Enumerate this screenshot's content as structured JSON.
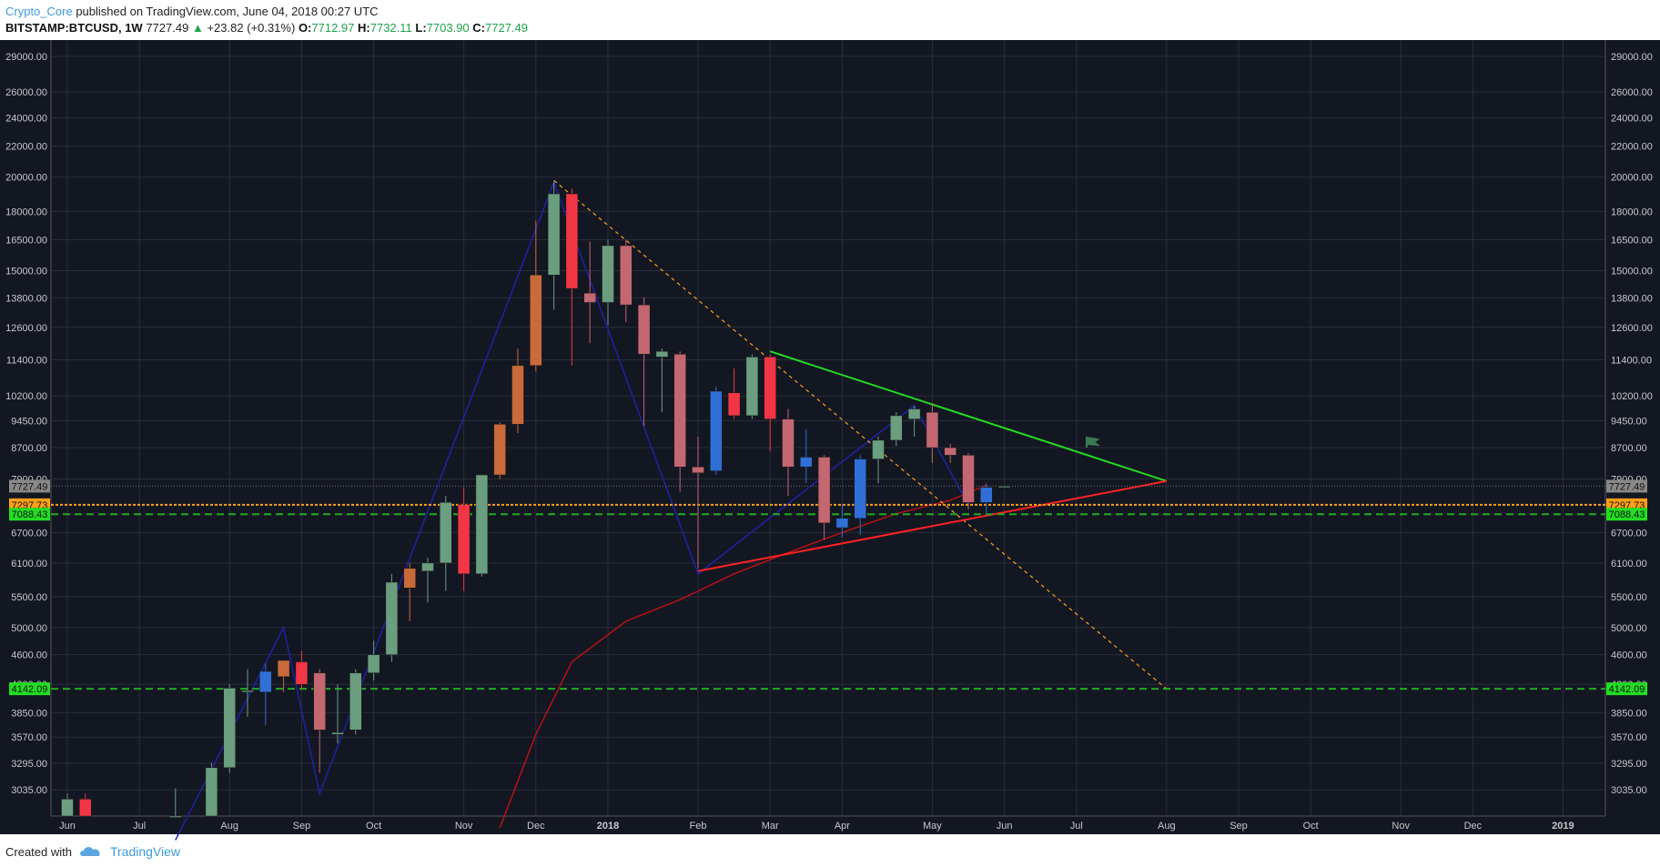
{
  "header": {
    "author": "Crypto_Core",
    "published": "published on TradingView.com, June 04, 2018 00:27 UTC",
    "symbol": "BITSTAMP:BTCUSD, 1W",
    "last": "7727.49",
    "change": "+23.82 (+0.31%)",
    "o_label": "O:",
    "o": "7712.97",
    "h_label": "H:",
    "h": "7732.11",
    "l_label": "L:",
    "l": "7703.90",
    "c_label": "C:",
    "c": "7727.49"
  },
  "footer": {
    "created": "Created with",
    "brand": "TradingView"
  },
  "colors": {
    "background": "#131722",
    "grid": "#2a2e39",
    "up": "#6a9e7f",
    "down": "#c36770",
    "down_strong": "#f23645",
    "blue_candle": "#2f6fd6",
    "orange_candle": "#c96a3a",
    "trend_green": "#22dd22",
    "trend_red": "#ff2222",
    "dashed_green": "#22aa22",
    "dashed_orange": "#ff9f1a"
  },
  "chart_data": {
    "type": "candlestick",
    "y_scale": "log",
    "ylim": [
      2800,
      30500
    ],
    "y_ticks": [
      29000,
      26000,
      24000,
      22000,
      20000,
      18000,
      16500,
      15000,
      13800,
      12600,
      11400,
      10200,
      9450,
      8700,
      7900,
      6700,
      6100,
      5500,
      5000,
      4600,
      4200,
      3850,
      3570,
      3295,
      3035
    ],
    "y_tick_labels": [
      "29000.00",
      "26000.00",
      "24000.00",
      "22000.00",
      "20000.00",
      "18000.00",
      "16500.00",
      "15000.00",
      "13800.00",
      "12600.00",
      "11400.00",
      "10200.00",
      "9450.00",
      "8700.00",
      "7900.00",
      "6700.00",
      "6100.00",
      "5500.00",
      "5000.00",
      "4600.00",
      "4200.00",
      "3850.00",
      "3570.00",
      "3295.00",
      "3035.00"
    ],
    "x_labels": [
      {
        "label": "Jun",
        "week": 0
      },
      {
        "label": "Jul",
        "week": 4
      },
      {
        "label": "Aug",
        "week": 9
      },
      {
        "label": "Sep",
        "week": 13
      },
      {
        "label": "Oct",
        "week": 17
      },
      {
        "label": "Nov",
        "week": 22
      },
      {
        "label": "Dec",
        "week": 26
      },
      {
        "label": "2018",
        "week": 30,
        "bold": true
      },
      {
        "label": "Feb",
        "week": 35
      },
      {
        "label": "Mar",
        "week": 39
      },
      {
        "label": "Apr",
        "week": 43
      },
      {
        "label": "May",
        "week": 48
      },
      {
        "label": "Jun",
        "week": 52
      },
      {
        "label": "Jul",
        "week": 56
      },
      {
        "label": "Aug",
        "week": 61
      },
      {
        "label": "Sep",
        "week": 65
      },
      {
        "label": "Oct",
        "week": 69
      },
      {
        "label": "Nov",
        "week": 74
      },
      {
        "label": "Dec",
        "week": 78
      },
      {
        "label": "2019",
        "week": 83,
        "bold": true
      }
    ],
    "candles": [
      {
        "w": 0,
        "o": 2700,
        "h": 3000,
        "l": 2650,
        "c": 2950,
        "col": "up"
      },
      {
        "w": 1,
        "o": 2950,
        "h": 3000,
        "l": 2700,
        "c": 2750,
        "col": "down_strong"
      },
      {
        "w": 6,
        "o": 2600,
        "h": 3050,
        "l": 2600,
        "c": 2800,
        "col": "up"
      },
      {
        "w": 8,
        "o": 2700,
        "h": 3300,
        "l": 2650,
        "c": 3250,
        "col": "up"
      },
      {
        "w": 9,
        "o": 3250,
        "h": 4200,
        "l": 3200,
        "c": 4150,
        "col": "up"
      },
      {
        "w": 10,
        "o": 4100,
        "h": 4400,
        "l": 3800,
        "c": 4120,
        "col": "up"
      },
      {
        "w": 11,
        "o": 4100,
        "h": 4480,
        "l": 3700,
        "c": 4370,
        "col": "blue_candle"
      },
      {
        "w": 12,
        "o": 4300,
        "h": 4500,
        "l": 4100,
        "c": 4520,
        "col": "orange_candle"
      },
      {
        "w": 13,
        "o": 4500,
        "h": 4650,
        "l": 4150,
        "c": 4200,
        "col": "down_strong"
      },
      {
        "w": 14,
        "o": 4350,
        "h": 4400,
        "l": 3200,
        "c": 3650,
        "col": "down"
      },
      {
        "w": 15,
        "o": 3600,
        "h": 4200,
        "l": 3500,
        "c": 3620,
        "col": "up"
      },
      {
        "w": 16,
        "o": 3650,
        "h": 4400,
        "l": 3600,
        "c": 4350,
        "col": "up"
      },
      {
        "w": 17,
        "o": 4350,
        "h": 4800,
        "l": 4250,
        "c": 4600,
        "col": "up"
      },
      {
        "w": 18,
        "o": 4600,
        "h": 5900,
        "l": 4500,
        "c": 5750,
        "col": "up"
      },
      {
        "w": 19,
        "o": 5650,
        "h": 6100,
        "l": 5100,
        "c": 6000,
        "col": "orange_candle"
      },
      {
        "w": 20,
        "o": 5950,
        "h": 6200,
        "l": 5400,
        "c": 6100,
        "col": "up"
      },
      {
        "w": 21,
        "o": 6100,
        "h": 7500,
        "l": 5600,
        "c": 7350,
        "col": "up"
      },
      {
        "w": 22,
        "o": 7300,
        "h": 7700,
        "l": 5600,
        "c": 5900,
        "col": "down_strong"
      },
      {
        "w": 23,
        "o": 5900,
        "h": 8000,
        "l": 5850,
        "c": 8000,
        "col": "up"
      },
      {
        "w": 24,
        "o": 8000,
        "h": 9400,
        "l": 7900,
        "c": 9350,
        "col": "orange_candle"
      },
      {
        "w": 25,
        "o": 9350,
        "h": 11800,
        "l": 9100,
        "c": 11200,
        "col": "orange_candle"
      },
      {
        "w": 26,
        "o": 11200,
        "h": 17500,
        "l": 11000,
        "c": 14800,
        "col": "orange_candle"
      },
      {
        "w": 27,
        "o": 14800,
        "h": 19700,
        "l": 13300,
        "c": 19000,
        "col": "up"
      },
      {
        "w": 28,
        "o": 19000,
        "h": 19300,
        "l": 11200,
        "c": 14200,
        "col": "down_strong"
      },
      {
        "w": 29,
        "o": 14000,
        "h": 16400,
        "l": 12000,
        "c": 13600,
        "col": "down"
      },
      {
        "w": 30,
        "o": 13600,
        "h": 16500,
        "l": 12700,
        "c": 16200,
        "col": "up"
      },
      {
        "w": 31,
        "o": 16200,
        "h": 16500,
        "l": 12800,
        "c": 13500,
        "col": "down"
      },
      {
        "w": 32,
        "o": 13500,
        "h": 13800,
        "l": 9300,
        "c": 11600,
        "col": "down"
      },
      {
        "w": 33,
        "o": 11500,
        "h": 11800,
        "l": 9700,
        "c": 11700,
        "col": "up"
      },
      {
        "w": 34,
        "o": 11600,
        "h": 11700,
        "l": 7600,
        "c": 8200,
        "col": "down"
      },
      {
        "w": 35,
        "o": 8200,
        "h": 9000,
        "l": 6000,
        "c": 8050,
        "col": "down"
      },
      {
        "w": 36,
        "o": 8100,
        "h": 10500,
        "l": 8000,
        "c": 10350,
        "col": "blue_candle"
      },
      {
        "w": 37,
        "o": 10300,
        "h": 11100,
        "l": 9500,
        "c": 9600,
        "col": "down_strong"
      },
      {
        "w": 38,
        "o": 9600,
        "h": 11600,
        "l": 9500,
        "c": 11500,
        "col": "up"
      },
      {
        "w": 39,
        "o": 11500,
        "h": 11600,
        "l": 8600,
        "c": 9500,
        "col": "down_strong"
      },
      {
        "w": 40,
        "o": 9500,
        "h": 9800,
        "l": 7500,
        "c": 8200,
        "col": "down"
      },
      {
        "w": 41,
        "o": 8200,
        "h": 9200,
        "l": 7800,
        "c": 8450,
        "col": "blue_candle"
      },
      {
        "w": 42,
        "o": 8450,
        "h": 8500,
        "l": 6550,
        "c": 6900,
        "col": "down"
      },
      {
        "w": 43,
        "o": 6800,
        "h": 7300,
        "l": 6600,
        "c": 7000,
        "col": "blue_candle"
      },
      {
        "w": 44,
        "o": 7000,
        "h": 8500,
        "l": 6650,
        "c": 8400,
        "col": "blue_candle"
      },
      {
        "w": 45,
        "o": 8400,
        "h": 9000,
        "l": 7800,
        "c": 8900,
        "col": "up"
      },
      {
        "w": 46,
        "o": 8900,
        "h": 9700,
        "l": 8750,
        "c": 9600,
        "col": "up"
      },
      {
        "w": 47,
        "o": 9500,
        "h": 9900,
        "l": 9000,
        "c": 9800,
        "col": "up"
      },
      {
        "w": 48,
        "o": 9700,
        "h": 9950,
        "l": 8300,
        "c": 8700,
        "col": "down"
      },
      {
        "w": 49,
        "o": 8700,
        "h": 8800,
        "l": 8300,
        "c": 8500,
        "col": "down"
      },
      {
        "w": 50,
        "o": 8500,
        "h": 8550,
        "l": 7200,
        "c": 7350,
        "col": "down"
      },
      {
        "w": 51,
        "o": 7350,
        "h": 7800,
        "l": 7100,
        "c": 7700,
        "col": "blue_candle"
      },
      {
        "w": 52,
        "o": 7712.97,
        "h": 7732.11,
        "l": 7703.9,
        "c": 7727.49,
        "col": "up"
      }
    ],
    "price_labels": [
      {
        "value": 7727.49,
        "label": "7727.49",
        "bg": "#888888"
      },
      {
        "value": 7297.73,
        "label": "7297.73",
        "bg": "#ff9f1a"
      },
      {
        "value": 7088.43,
        "label": "7088.43",
        "bg": "#22dd22"
      },
      {
        "value": 4142.09,
        "label": "4142.09",
        "bg": "#22dd22"
      }
    ]
  }
}
